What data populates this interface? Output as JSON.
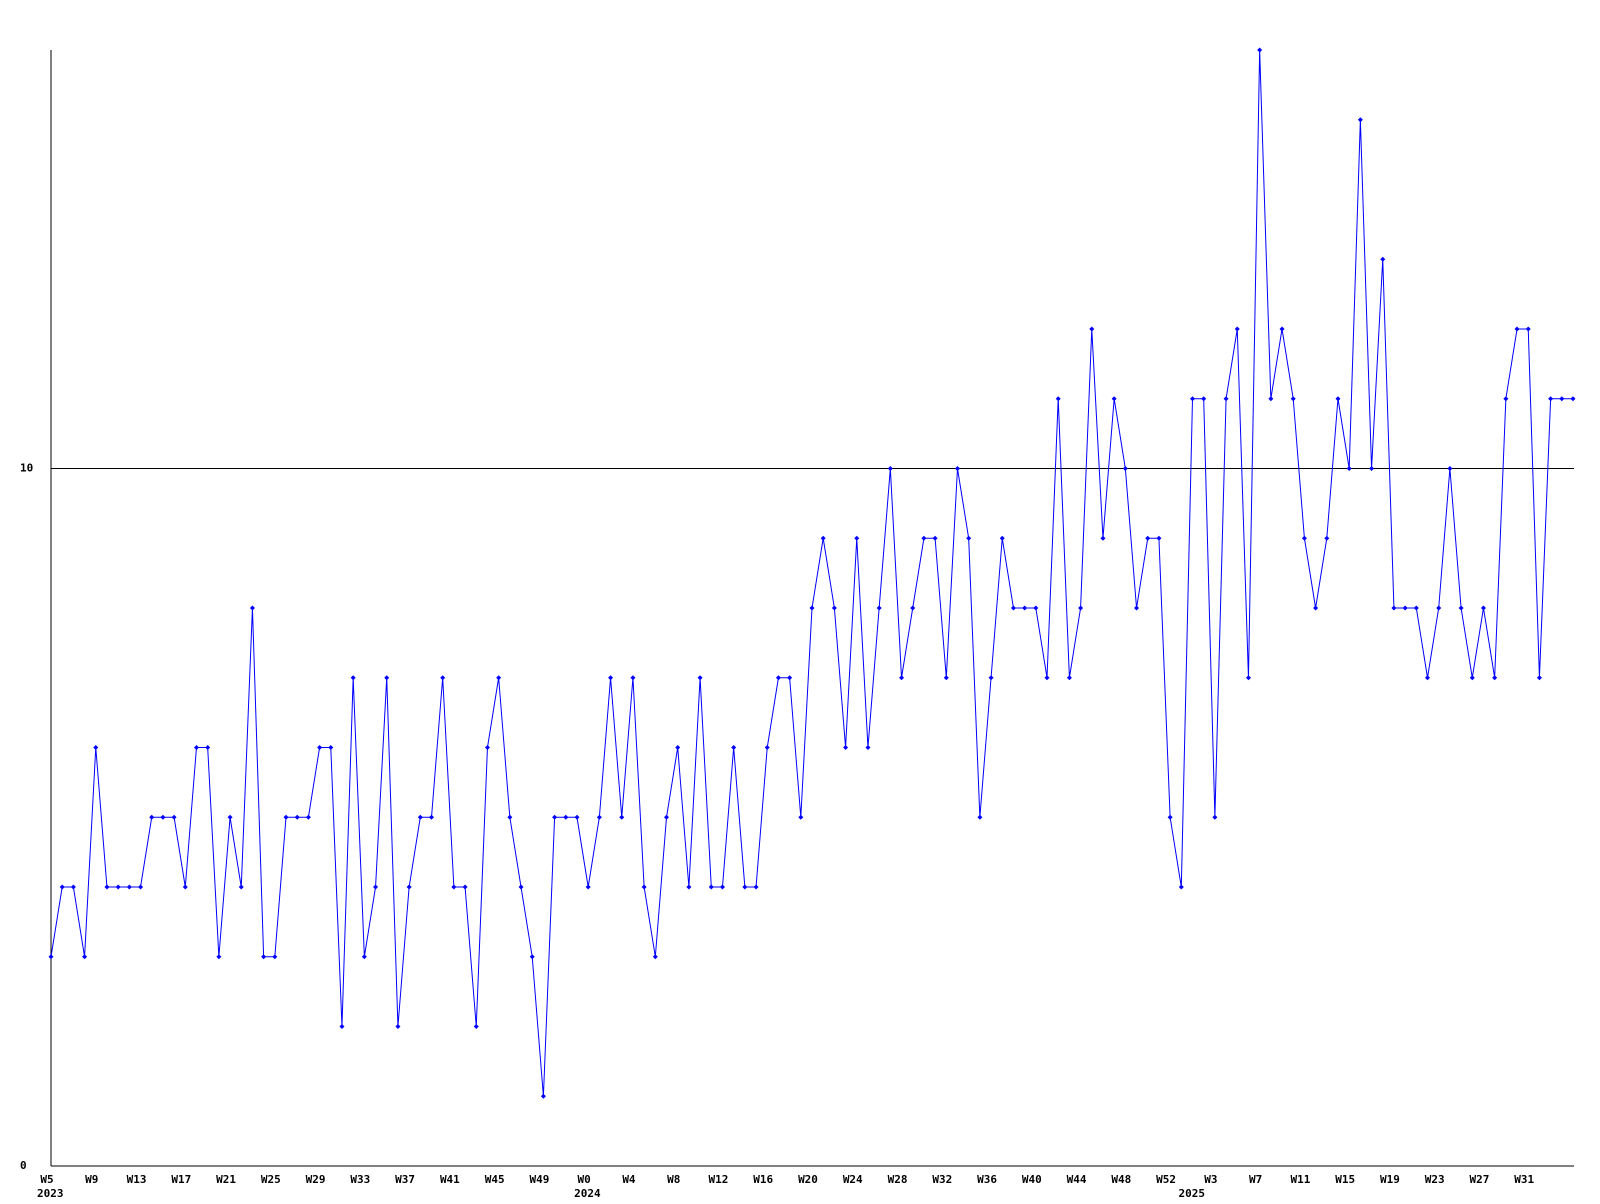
{
  "chart_data": {
    "type": "line",
    "categories": [
      "W5",
      null,
      null,
      null,
      "W9",
      null,
      null,
      null,
      "W13",
      null,
      null,
      null,
      "W17",
      null,
      null,
      null,
      "W21",
      null,
      null,
      null,
      "W25",
      null,
      null,
      null,
      "W29",
      null,
      null,
      null,
      "W33",
      null,
      null,
      null,
      "W37",
      null,
      null,
      null,
      "W41",
      null,
      null,
      null,
      "W45",
      null,
      null,
      null,
      "W49",
      null,
      null,
      null,
      "W0",
      null,
      null,
      null,
      "W4",
      null,
      null,
      null,
      "W8",
      null,
      null,
      null,
      "W12",
      null,
      null,
      null,
      "W16",
      null,
      null,
      null,
      "W20",
      null,
      null,
      null,
      "W24",
      null,
      null,
      null,
      "W28",
      null,
      null,
      null,
      "W32",
      null,
      null,
      null,
      "W36",
      null,
      null,
      null,
      "W40",
      null,
      null,
      null,
      "W44",
      null,
      null,
      null,
      "W48",
      null,
      null,
      null,
      "W52",
      null,
      null,
      null,
      "W3",
      null,
      null,
      null,
      "W7",
      null,
      null,
      null,
      "W11",
      null,
      null,
      null,
      "W15",
      null,
      null,
      null,
      "W19",
      null,
      null,
      null,
      "W23",
      null,
      null,
      null,
      "W27",
      null,
      null,
      null,
      "W31",
      null,
      null,
      null,
      null
    ],
    "years": [
      "2023",
      null,
      null,
      null,
      null,
      null,
      null,
      null,
      null,
      null,
      null,
      null,
      null,
      null,
      null,
      null,
      null,
      null,
      null,
      null,
      null,
      null,
      null,
      null,
      null,
      null,
      null,
      null,
      null,
      null,
      null,
      null,
      null,
      null,
      null,
      null,
      null,
      null,
      null,
      null,
      null,
      null,
      null,
      null,
      null,
      null,
      null,
      null,
      "2024",
      null,
      null,
      null,
      null,
      null,
      null,
      null,
      null,
      null,
      null,
      null,
      null,
      null,
      null,
      null,
      null,
      null,
      null,
      null,
      null,
      null,
      null,
      null,
      null,
      null,
      null,
      null,
      null,
      null,
      null,
      null,
      null,
      null,
      null,
      null,
      null,
      null,
      null,
      null,
      null,
      null,
      null,
      null,
      null,
      null,
      null,
      null,
      null,
      null,
      null,
      null,
      null,
      null,
      "2025",
      null,
      null,
      null,
      null,
      null,
      null,
      null,
      null,
      null,
      null,
      null,
      null,
      null,
      null,
      null,
      null,
      null,
      null,
      null,
      null,
      null,
      null,
      null,
      null,
      null,
      null,
      null,
      null,
      null,
      null,
      null,
      null
    ],
    "series": [
      {
        "color": "#0000ff",
        "values": [
          3,
          4,
          4,
          3,
          6,
          4,
          4,
          4,
          4,
          5,
          5,
          5,
          4,
          6,
          6,
          3,
          5,
          4,
          8,
          3,
          3,
          5,
          5,
          5,
          6,
          6,
          2,
          7,
          3,
          4,
          7,
          2,
          4,
          5,
          5,
          7,
          4,
          4,
          2,
          6,
          7,
          5,
          4,
          3,
          1,
          5,
          5,
          5,
          4,
          5,
          7,
          5,
          7,
          4,
          3,
          5,
          6,
          4,
          7,
          4,
          4,
          6,
          4,
          4,
          6,
          7,
          7,
          5,
          8,
          9,
          8,
          6,
          9,
          6,
          8,
          10,
          7,
          8,
          9,
          9,
          7,
          10,
          9,
          5,
          7,
          9,
          8,
          8,
          8,
          7,
          11,
          7,
          8,
          12,
          9,
          11,
          10,
          8,
          9,
          9,
          5,
          4,
          11,
          11,
          5,
          11,
          12,
          7,
          16,
          11,
          12,
          11,
          9,
          8,
          9,
          11,
          10,
          15,
          10,
          13,
          8,
          8,
          8,
          7,
          8,
          10,
          8,
          7,
          8,
          7,
          11,
          12,
          12,
          7,
          11,
          11,
          11
        ]
      }
    ],
    "ylim": [
      0,
      16
    ],
    "yticks": [
      0,
      10
    ],
    "grid": true
  }
}
